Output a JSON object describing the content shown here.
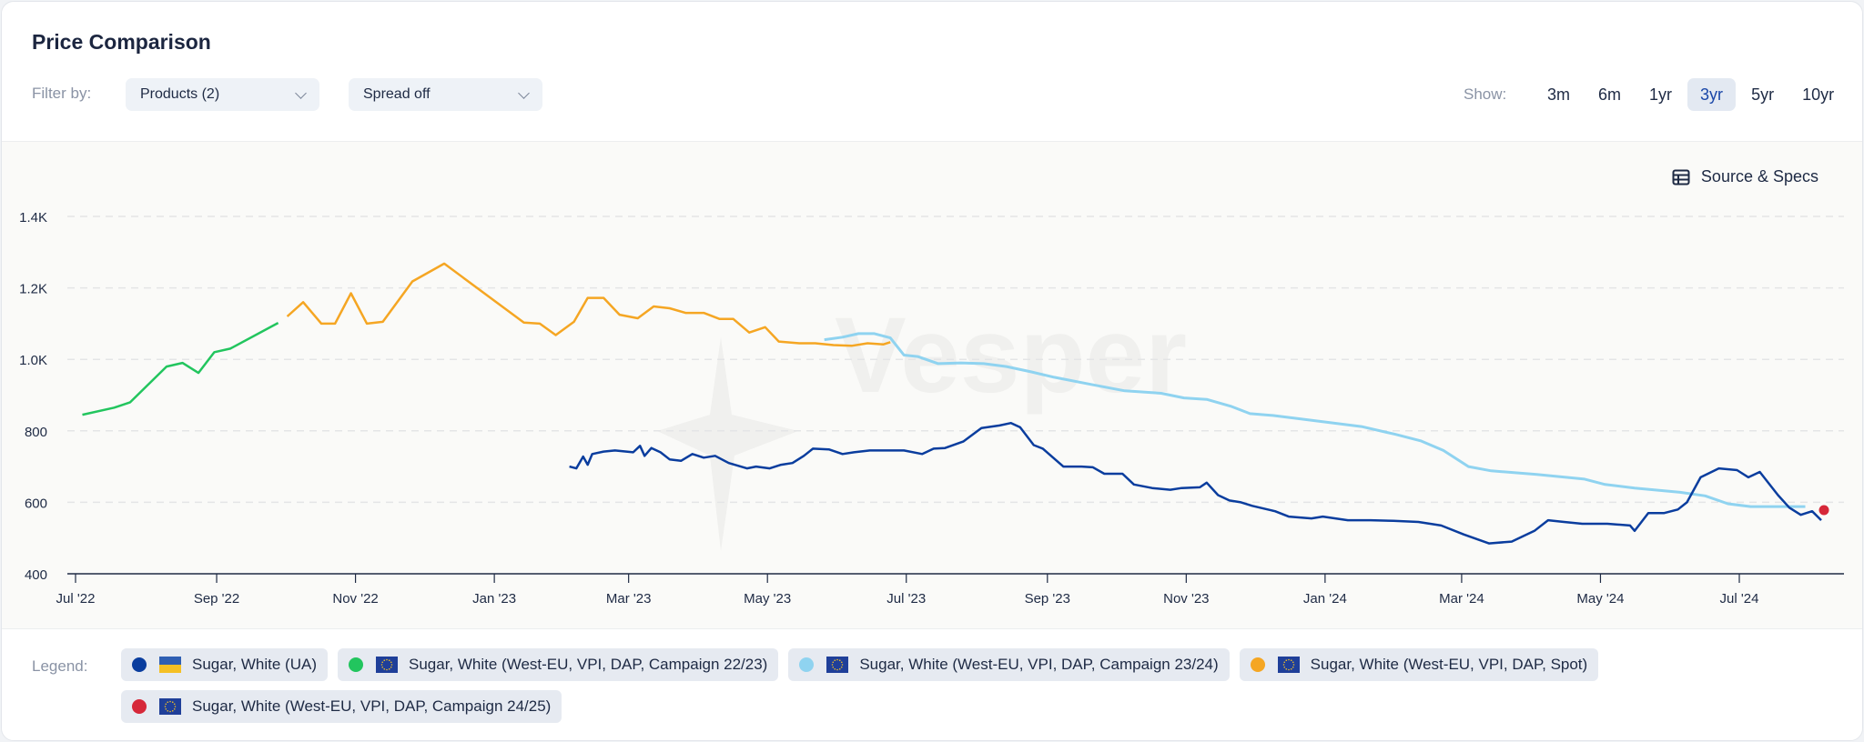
{
  "header": {
    "title": "Price Comparison",
    "filter_label": "Filter by:",
    "products_dropdown": "Products (2)",
    "spread_dropdown": "Spread off",
    "show_label": "Show:",
    "ranges": [
      {
        "label": "3m"
      },
      {
        "label": "6m"
      },
      {
        "label": "1yr"
      },
      {
        "label": "3yr",
        "active": true
      },
      {
        "label": "5yr"
      },
      {
        "label": "10yr"
      }
    ]
  },
  "source_specs_label": "Source & Specs",
  "watermark": "Vesper",
  "legend": {
    "label": "Legend:",
    "items": [
      {
        "label": "Sugar, White (UA)",
        "color": "#0a3d9e",
        "flag": "ua-flag"
      },
      {
        "label": "Sugar, White (West-EU, VPI, DAP, Campaign 22/23)",
        "color": "#22c55e",
        "flag": "eu-flag"
      },
      {
        "label": "Sugar, White (West-EU, VPI, DAP, Campaign 23/24)",
        "color": "#8fd3f0",
        "flag": "eu-flag"
      },
      {
        "label": "Sugar, White (West-EU, VPI, DAP, Spot)",
        "color": "#f5a623",
        "flag": "eu-flag"
      },
      {
        "label": "Sugar, White (West-EU, VPI, DAP, Campaign 24/25)",
        "color": "#d62839",
        "flag": "eu-flag"
      }
    ]
  },
  "chart_data": {
    "type": "line",
    "ylim": [
      400,
      1400
    ],
    "xlim": [
      "2022-06-28",
      "2024-08-15"
    ],
    "grid": true,
    "yticks": [
      {
        "v": 400,
        "label": "400"
      },
      {
        "v": 600,
        "label": "600"
      },
      {
        "v": 800,
        "label": "800"
      },
      {
        "v": 1000,
        "label": "1.0K"
      },
      {
        "v": 1200,
        "label": "1.2K"
      },
      {
        "v": 1400,
        "label": "1.4K"
      }
    ],
    "xticks": [
      {
        "d": "2022-07-01",
        "label": "Jul '22"
      },
      {
        "d": "2022-09-01",
        "label": "Sep '22"
      },
      {
        "d": "2022-11-01",
        "label": "Nov '22"
      },
      {
        "d": "2023-01-01",
        "label": "Jan '23"
      },
      {
        "d": "2023-03-01",
        "label": "Mar '23"
      },
      {
        "d": "2023-05-01",
        "label": "May '23"
      },
      {
        "d": "2023-07-01",
        "label": "Jul '23"
      },
      {
        "d": "2023-09-01",
        "label": "Sep '23"
      },
      {
        "d": "2023-11-01",
        "label": "Nov '23"
      },
      {
        "d": "2024-01-01",
        "label": "Jan '24"
      },
      {
        "d": "2024-03-01",
        "label": "Mar '24"
      },
      {
        "d": "2024-05-01",
        "label": "May '24"
      },
      {
        "d": "2024-07-01",
        "label": "Jul '24"
      }
    ],
    "series": [
      {
        "name": "Sugar, White (West-EU, VPI, DAP, Campaign 22/23)",
        "color": "#22c55e",
        "points": [
          [
            "2022-07-04",
            845
          ],
          [
            "2022-07-18",
            865
          ],
          [
            "2022-07-25",
            880
          ],
          [
            "2022-08-10",
            980
          ],
          [
            "2022-08-17",
            990
          ],
          [
            "2022-08-24",
            962
          ],
          [
            "2022-08-31",
            1020
          ],
          [
            "2022-09-07",
            1030
          ],
          [
            "2022-09-28",
            1102
          ]
        ]
      },
      {
        "name": "Sugar, White (West-EU, VPI, DAP, Spot)",
        "color": "#f5a623",
        "points": [
          [
            "2022-10-02",
            1120
          ],
          [
            "2022-10-09",
            1160
          ],
          [
            "2022-10-17",
            1100
          ],
          [
            "2022-10-23",
            1100
          ],
          [
            "2022-10-30",
            1185
          ],
          [
            "2022-11-06",
            1100
          ],
          [
            "2022-11-13",
            1105
          ],
          [
            "2022-11-26",
            1218
          ],
          [
            "2022-12-10",
            1268
          ],
          [
            "2023-01-14",
            1103
          ],
          [
            "2023-01-21",
            1100
          ],
          [
            "2023-01-28",
            1068
          ],
          [
            "2023-02-05",
            1105
          ],
          [
            "2023-02-11",
            1172
          ],
          [
            "2023-02-18",
            1172
          ],
          [
            "2023-02-25",
            1125
          ],
          [
            "2023-03-05",
            1115
          ],
          [
            "2023-03-12",
            1148
          ],
          [
            "2023-03-19",
            1143
          ],
          [
            "2023-03-26",
            1130
          ],
          [
            "2023-04-03",
            1130
          ],
          [
            "2023-04-10",
            1113
          ],
          [
            "2023-04-16",
            1113
          ],
          [
            "2023-04-23",
            1075
          ],
          [
            "2023-04-30",
            1090
          ],
          [
            "2023-05-06",
            1050
          ],
          [
            "2023-05-15",
            1045
          ],
          [
            "2023-05-22",
            1045
          ],
          [
            "2023-05-30",
            1040
          ],
          [
            "2023-06-07",
            1038
          ],
          [
            "2023-06-14",
            1045
          ],
          [
            "2023-06-21",
            1042
          ],
          [
            "2023-06-24",
            1048
          ]
        ]
      },
      {
        "name": "Sugar, White (West-EU, VPI, DAP, Campaign 23/24)",
        "color": "#8fd3f0",
        "points": [
          [
            "2023-05-26",
            1055
          ],
          [
            "2023-06-03",
            1062
          ],
          [
            "2023-06-10",
            1072
          ],
          [
            "2023-06-17",
            1072
          ],
          [
            "2023-06-24",
            1060
          ],
          [
            "2023-06-30",
            1012
          ],
          [
            "2023-07-06",
            1008
          ],
          [
            "2023-07-15",
            988
          ],
          [
            "2023-07-25",
            990
          ],
          [
            "2023-08-04",
            988
          ],
          [
            "2023-08-14",
            980
          ],
          [
            "2023-08-25",
            965
          ],
          [
            "2023-09-04",
            950
          ],
          [
            "2023-09-20",
            930
          ],
          [
            "2023-10-05",
            912
          ],
          [
            "2023-10-21",
            905
          ],
          [
            "2023-10-31",
            892
          ],
          [
            "2023-11-10",
            888
          ],
          [
            "2023-11-21",
            868
          ],
          [
            "2023-11-29",
            848
          ],
          [
            "2023-12-09",
            843
          ],
          [
            "2023-12-23",
            832
          ],
          [
            "2024-01-17",
            812
          ],
          [
            "2024-02-01",
            790
          ],
          [
            "2024-02-12",
            772
          ],
          [
            "2024-02-22",
            745
          ],
          [
            "2024-03-04",
            700
          ],
          [
            "2024-03-14",
            688
          ],
          [
            "2024-04-03",
            678
          ],
          [
            "2024-04-24",
            665
          ],
          [
            "2024-05-03",
            650
          ],
          [
            "2024-05-16",
            640
          ],
          [
            "2024-06-05",
            628
          ],
          [
            "2024-06-16",
            618
          ],
          [
            "2024-06-26",
            596
          ],
          [
            "2024-07-06",
            588
          ],
          [
            "2024-07-30",
            588
          ]
        ]
      },
      {
        "name": "Sugar, White (UA)",
        "color": "#0a3d9e",
        "points": [
          [
            "2023-02-03",
            700
          ],
          [
            "2023-02-06",
            695
          ],
          [
            "2023-02-09",
            728
          ],
          [
            "2023-02-11",
            705
          ],
          [
            "2023-02-13",
            735
          ],
          [
            "2023-02-18",
            742
          ],
          [
            "2023-02-23",
            745
          ],
          [
            "2023-03-03",
            740
          ],
          [
            "2023-03-06",
            758
          ],
          [
            "2023-03-08",
            730
          ],
          [
            "2023-03-11",
            752
          ],
          [
            "2023-03-15",
            740
          ],
          [
            "2023-03-19",
            720
          ],
          [
            "2023-03-24",
            716
          ],
          [
            "2023-03-29",
            735
          ],
          [
            "2023-04-03",
            725
          ],
          [
            "2023-04-08",
            730
          ],
          [
            "2023-04-14",
            710
          ],
          [
            "2023-04-22",
            695
          ],
          [
            "2023-04-26",
            700
          ],
          [
            "2023-05-02",
            695
          ],
          [
            "2023-05-07",
            705
          ],
          [
            "2023-05-12",
            710
          ],
          [
            "2023-05-17",
            730
          ],
          [
            "2023-05-21",
            750
          ],
          [
            "2023-05-28",
            748
          ],
          [
            "2023-06-03",
            735
          ],
          [
            "2023-06-08",
            740
          ],
          [
            "2023-06-15",
            745
          ],
          [
            "2023-06-22",
            745
          ],
          [
            "2023-06-30",
            745
          ],
          [
            "2023-07-08",
            735
          ],
          [
            "2023-07-13",
            750
          ],
          [
            "2023-07-18",
            752
          ],
          [
            "2023-07-26",
            770
          ],
          [
            "2023-08-03",
            808
          ],
          [
            "2023-08-11",
            815
          ],
          [
            "2023-08-16",
            822
          ],
          [
            "2023-08-20",
            810
          ],
          [
            "2023-08-26",
            760
          ],
          [
            "2023-08-30",
            750
          ],
          [
            "2023-09-08",
            700
          ],
          [
            "2023-09-16",
            700
          ],
          [
            "2023-09-21",
            698
          ],
          [
            "2023-09-26",
            680
          ],
          [
            "2023-10-04",
            680
          ],
          [
            "2023-10-09",
            650
          ],
          [
            "2023-10-17",
            640
          ],
          [
            "2023-10-25",
            635
          ],
          [
            "2023-10-30",
            640
          ],
          [
            "2023-11-07",
            642
          ],
          [
            "2023-11-10",
            655
          ],
          [
            "2023-11-15",
            620
          ],
          [
            "2023-11-20",
            605
          ],
          [
            "2023-11-25",
            600
          ],
          [
            "2023-11-30",
            590
          ],
          [
            "2023-12-10",
            575
          ],
          [
            "2023-12-16",
            560
          ],
          [
            "2023-12-26",
            555
          ],
          [
            "2023-12-31",
            560
          ],
          [
            "2024-01-11",
            550
          ],
          [
            "2024-01-21",
            550
          ],
          [
            "2024-01-31",
            548
          ],
          [
            "2024-02-11",
            545
          ],
          [
            "2024-02-21",
            535
          ],
          [
            "2024-03-02",
            510
          ],
          [
            "2024-03-13",
            485
          ],
          [
            "2024-03-23",
            490
          ],
          [
            "2024-04-02",
            520
          ],
          [
            "2024-04-08",
            550
          ],
          [
            "2024-04-15",
            545
          ],
          [
            "2024-04-23",
            540
          ],
          [
            "2024-05-04",
            540
          ],
          [
            "2024-05-14",
            535
          ],
          [
            "2024-05-16",
            520
          ],
          [
            "2024-05-22",
            570
          ],
          [
            "2024-05-29",
            570
          ],
          [
            "2024-06-04",
            580
          ],
          [
            "2024-06-08",
            600
          ],
          [
            "2024-06-14",
            670
          ],
          [
            "2024-06-22",
            695
          ],
          [
            "2024-06-30",
            690
          ],
          [
            "2024-07-05",
            670
          ],
          [
            "2024-07-10",
            685
          ],
          [
            "2024-07-18",
            620
          ],
          [
            "2024-07-23",
            585
          ],
          [
            "2024-07-28",
            565
          ],
          [
            "2024-08-02",
            575
          ],
          [
            "2024-08-06",
            550
          ]
        ]
      },
      {
        "name": "Sugar, White (West-EU, VPI, DAP, Campaign 24/25)",
        "color": "#d62839",
        "points": [
          [
            "2024-08-06",
            578
          ]
        ],
        "marker": true
      }
    ]
  }
}
